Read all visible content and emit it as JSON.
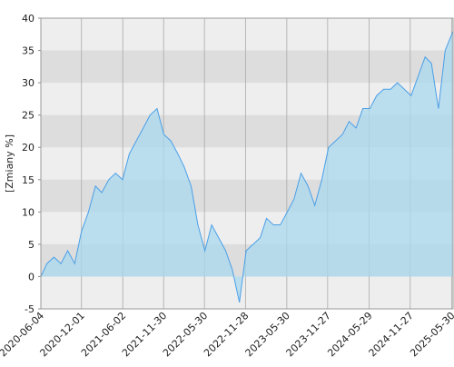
{
  "chart_data": {
    "type": "area",
    "y_label": "[Zmiany %]",
    "x": [
      "2020-06-04",
      "2020-07-01",
      "2020-08-01",
      "2020-09-01",
      "2020-10-01",
      "2020-11-01",
      "2020-12-01",
      "2021-01-01",
      "2021-02-01",
      "2021-03-01",
      "2021-04-01",
      "2021-05-01",
      "2021-06-01",
      "2021-07-01",
      "2021-08-01",
      "2021-09-01",
      "2021-10-01",
      "2021-11-01",
      "2021-12-01",
      "2022-01-01",
      "2022-02-01",
      "2022-03-01",
      "2022-04-01",
      "2022-05-01",
      "2022-06-01",
      "2022-07-01",
      "2022-08-01",
      "2022-09-01",
      "2022-10-01",
      "2022-11-01",
      "2022-12-01",
      "2023-01-01",
      "2023-02-01",
      "2023-03-01",
      "2023-04-01",
      "2023-05-01",
      "2023-06-01",
      "2023-07-01",
      "2023-08-01",
      "2023-09-01",
      "2023-10-01",
      "2023-11-01",
      "2023-12-01",
      "2024-01-01",
      "2024-02-01",
      "2024-03-01",
      "2024-04-01",
      "2024-05-01",
      "2024-06-01",
      "2024-07-01",
      "2024-08-01",
      "2024-09-01",
      "2024-10-01",
      "2024-11-01",
      "2024-12-01",
      "2025-01-01",
      "2025-02-01",
      "2025-03-01",
      "2025-04-01",
      "2025-05-01",
      "2025-06-05"
    ],
    "values": [
      0,
      2,
      3,
      2,
      4,
      2,
      7,
      10,
      14,
      13,
      15,
      16,
      15,
      19,
      21,
      23,
      25,
      26,
      22,
      21,
      19,
      17,
      14,
      8,
      4,
      8,
      6,
      4,
      1,
      -4,
      4,
      5,
      6,
      9,
      8,
      8,
      10,
      12,
      16,
      14,
      11,
      15,
      20,
      21,
      22,
      24,
      23,
      26,
      26,
      28,
      29,
      29,
      30,
      29,
      28,
      31,
      34,
      33,
      26,
      35,
      38
    ],
    "line_color": "#4a9fe8",
    "fill_color": "#a8d8ee",
    "xlim": [
      "2020-06-04",
      "2025-06-05"
    ],
    "xticks": [
      "2020-06-04",
      "2020-12-01",
      "2021-06-02",
      "2021-11-30",
      "2022-05-30",
      "2022-11-28",
      "2023-05-30",
      "2023-11-27",
      "2024-05-29",
      "2024-11-27",
      "2025-05-30"
    ],
    "ylim": [
      -5,
      40
    ],
    "yticks": [
      -5,
      0,
      5,
      10,
      15,
      20,
      25,
      30,
      35,
      40
    ],
    "grid": true
  }
}
